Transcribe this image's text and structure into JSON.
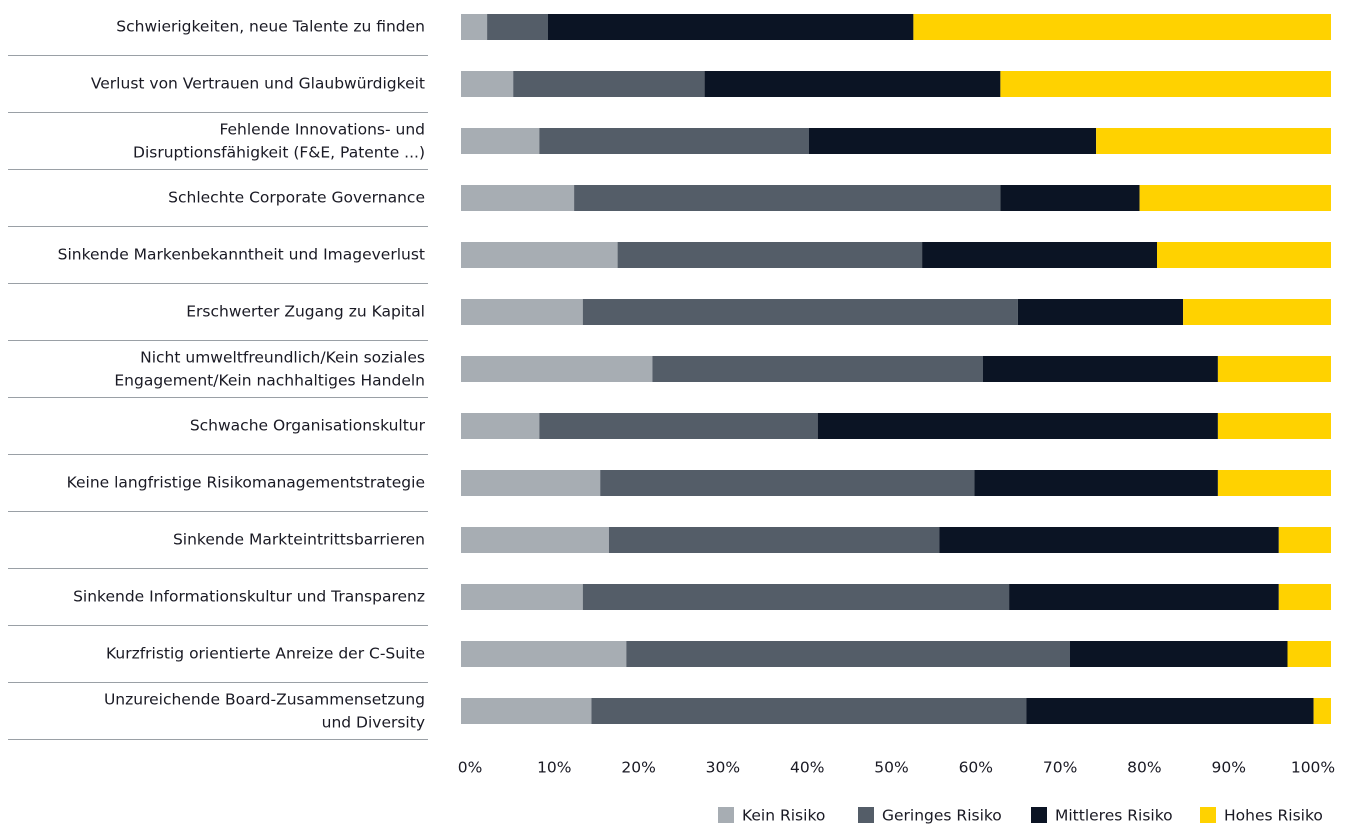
{
  "chart_data": {
    "type": "stacked-bar-horizontal",
    "categories": [
      "Schwierigkeiten, neue Talente zu finden",
      "Verlust von Vertrauen und Glaubwürdigkeit",
      "Fehlende Innovations- und\nDisruptionsfähigkeit (F&E, Patente ...)",
      "Schlechte Corporate Governance",
      "Sinkende Markenbekanntheit und Imageverlust",
      "Erschwerter Zugang zu Kapital",
      "Nicht umweltfreundlich/Kein soziales\nEngagement/Kein nachhaltiges Handeln",
      "Schwache Organisationskultur",
      "Keine langfristige Risikomanagementstrategie",
      "Sinkende Markteintrittsbarrieren",
      "Sinkende Informationskultur und Transparenz",
      "Kurzfristig orientierte Anreize der C-Suite",
      "Unzureichende Board-Zusammensetzung\nund Diversity"
    ],
    "series": [
      {
        "name": "Kein Risiko",
        "color": "#a7adb3",
        "values": [
          3,
          6,
          9,
          13,
          18,
          14,
          22,
          9,
          16,
          17,
          14,
          19,
          15
        ]
      },
      {
        "name": "Geringes Risiko",
        "color": "#545d68",
        "values": [
          7,
          22,
          31,
          49,
          35,
          50,
          38,
          32,
          43,
          38,
          49,
          51,
          50
        ]
      },
      {
        "name": "Mittleres Risiko",
        "color": "#0b1424",
        "values": [
          42,
          34,
          33,
          16,
          27,
          19,
          27,
          46,
          28,
          39,
          31,
          25,
          33
        ]
      },
      {
        "name": "Hohes Risiko",
        "color": "#ffd200",
        "values": [
          48,
          38,
          27,
          22,
          20,
          17,
          13,
          13,
          13,
          6,
          6,
          5,
          2
        ]
      }
    ],
    "xlim": [
      0,
      100
    ],
    "xticks": [
      {
        "value": 0,
        "label": "0%"
      },
      {
        "value": 10,
        "label": "10%"
      },
      {
        "value": 20,
        "label": "20%"
      },
      {
        "value": 30,
        "label": "30%"
      },
      {
        "value": 40,
        "label": "40%"
      },
      {
        "value": 50,
        "label": "50%"
      },
      {
        "value": 60,
        "label": "60%"
      },
      {
        "value": 70,
        "label": "70%"
      },
      {
        "value": 80,
        "label": "80%"
      },
      {
        "value": 90,
        "label": "90%"
      },
      {
        "value": 100,
        "label": "100%"
      }
    ],
    "legend": "bottom-right"
  }
}
